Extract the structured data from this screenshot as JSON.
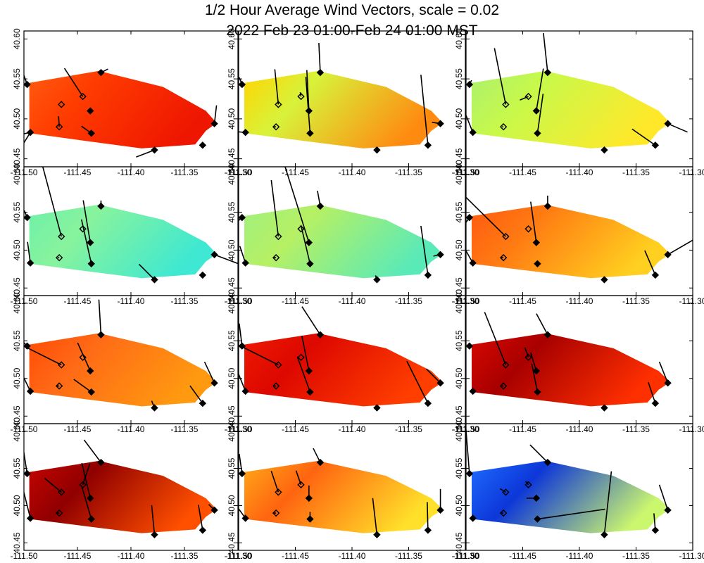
{
  "figure": {
    "title_line1": "1/2 Hour Average Wind Vectors, scale =  0.02",
    "title_line2": "2022 Feb 23 01:00-Feb 24 01:00 MST"
  },
  "chart_data": {
    "type": "heatmap",
    "title": "1/2 Hour Average Wind Vectors, scale =  0.02",
    "subtitle": "2022 Feb 23 01:00-Feb 24 01:00 MST",
    "xlim": [
      -111.5,
      -111.3
    ],
    "ylim": [
      40.44,
      40.61
    ],
    "x_ticks": [
      -111.5,
      -111.45,
      -111.4,
      -111.35,
      -111.3
    ],
    "x_tick_labels": [
      "-111.50",
      "-111.45",
      "-111.40",
      "-111.35",
      "-111.30"
    ],
    "y_ticks": [
      40.45,
      40.5,
      40.55,
      40.6
    ],
    "y_tick_labels": [
      "40.45",
      "40.50",
      "40.55",
      "40.60"
    ],
    "domain_polygon": [
      [
        -111.495,
        40.545
      ],
      [
        -111.43,
        40.56
      ],
      [
        -111.37,
        40.54
      ],
      [
        -111.33,
        40.51
      ],
      [
        -111.32,
        40.495
      ],
      [
        -111.33,
        40.485
      ],
      [
        -111.34,
        40.468
      ],
      [
        -111.39,
        40.463
      ],
      [
        -111.44,
        40.472
      ],
      [
        -111.495,
        40.482
      ]
    ],
    "stations": [
      {
        "lon": -111.497,
        "lat": 40.543,
        "filled": true
      },
      {
        "lon": -111.428,
        "lat": 40.558,
        "filled": true
      },
      {
        "lon": -111.465,
        "lat": 40.518,
        "filled": false
      },
      {
        "lon": -111.445,
        "lat": 40.528,
        "filled": false
      },
      {
        "lon": -111.467,
        "lat": 40.49,
        "filled": false
      },
      {
        "lon": -111.438,
        "lat": 40.51,
        "filled": true
      },
      {
        "lon": -111.437,
        "lat": 40.482,
        "filled": true
      },
      {
        "lon": -111.494,
        "lat": 40.483,
        "filled": true
      },
      {
        "lon": -111.378,
        "lat": 40.461,
        "filled": true
      },
      {
        "lon": -111.333,
        "lat": 40.467,
        "filled": true
      },
      {
        "lon": -111.322,
        "lat": 40.494,
        "filled": true
      }
    ],
    "panels": [
      {
        "id": 1,
        "colors": [
          "#ff5b10",
          "#ff3c00",
          "#ee1600"
        ],
        "vectors": [
          [
            8,
            -26,
            10
          ],
          [
            1,
            10,
            -5
          ],
          [
            7,
            -28,
            45
          ],
          [
            10,
            3,
            -26
          ],
          [
            8,
            3,
            0
          ],
          [
            2,
            0,
            0
          ],
          [
            0,
            -5,
            -14
          ],
          [
            4,
            -1,
            -15
          ],
          [
            3,
            -26,
            -40
          ],
          [
            6,
            -14,
            -10
          ],
          [
            7,
            -15,
            3
          ]
        ]
      },
      {
        "id": 2,
        "colors": [
          "#ffd400",
          "#d8f23a",
          "#ff8a10"
        ],
        "vectors": [
          [
            0,
            -4,
            -10
          ],
          [
            1,
            -2,
            -42
          ],
          [
            2,
            -5,
            -50
          ],
          [
            3,
            -1,
            -6
          ],
          [
            4,
            -4,
            0
          ],
          [
            5,
            -3,
            -58
          ],
          [
            6,
            -6,
            -80
          ],
          [
            7,
            -24,
            -2
          ],
          [
            8,
            0,
            0
          ],
          [
            9,
            -10,
            -100
          ],
          [
            10,
            -12,
            -2
          ]
        ]
      },
      {
        "id": 3,
        "colors": [
          "#aaf06e",
          "#c8f94a",
          "#ffe82a"
        ],
        "vectors": [
          [
            0,
            3,
            -6
          ],
          [
            1,
            -6,
            -56
          ],
          [
            2,
            -16,
            -80
          ],
          [
            3,
            -12,
            5
          ],
          [
            4,
            -2,
            0
          ],
          [
            5,
            10,
            -60
          ],
          [
            6,
            8,
            -56
          ],
          [
            7,
            -16,
            -40
          ],
          [
            8,
            0,
            0
          ],
          [
            9,
            -33,
            -23
          ],
          [
            10,
            28,
            12
          ]
        ]
      },
      {
        "id": 4,
        "colors": [
          "#6ef0aa",
          "#88f39d",
          "#3ee8d2"
        ],
        "vectors": [
          [
            0,
            -4,
            -10
          ],
          [
            1,
            0,
            -8
          ],
          [
            2,
            -28,
            -105
          ],
          [
            3,
            0,
            0
          ],
          [
            4,
            -2,
            0
          ],
          [
            5,
            -10,
            -60
          ],
          [
            6,
            -14,
            -63
          ],
          [
            7,
            -4,
            -30
          ],
          [
            8,
            -22,
            -22
          ],
          [
            9,
            0,
            0
          ],
          [
            10,
            45,
            17
          ]
        ]
      },
      {
        "id": 5,
        "colors": [
          "#a0f07f",
          "#b6f064",
          "#5aeab8"
        ],
        "vectors": [
          [
            0,
            -14,
            12
          ],
          [
            1,
            -4,
            -22
          ],
          [
            2,
            -10,
            -80
          ],
          [
            3,
            0,
            0
          ],
          [
            4,
            -4,
            0
          ],
          [
            5,
            -44,
            -140
          ],
          [
            6,
            -13,
            -55
          ],
          [
            7,
            -8,
            -24
          ],
          [
            8,
            -2,
            -6
          ],
          [
            9,
            -10,
            -70
          ],
          [
            10,
            -10,
            2
          ]
        ]
      },
      {
        "id": 6,
        "colors": [
          "#ff5a10",
          "#ff7a12",
          "#ffd020"
        ],
        "vectors": [
          [
            0,
            -10,
            14
          ],
          [
            1,
            0,
            -15
          ],
          [
            2,
            -66,
            -65
          ],
          [
            3,
            0,
            0
          ],
          [
            4,
            -4,
            0
          ],
          [
            5,
            -8,
            -58
          ],
          [
            6,
            0,
            0
          ],
          [
            7,
            -14,
            -25
          ],
          [
            8,
            0,
            0
          ],
          [
            9,
            -15,
            -35
          ],
          [
            10,
            55,
            -32
          ]
        ]
      },
      {
        "id": 7,
        "colors": [
          "#ff4a06",
          "#ff6a16",
          "#ff9a10"
        ],
        "vectors": [
          [
            0,
            -18,
            -18
          ],
          [
            1,
            -3,
            -50
          ],
          [
            2,
            -68,
            -34
          ],
          [
            3,
            0,
            0
          ],
          [
            4,
            -4,
            0
          ],
          [
            5,
            -18,
            -40
          ],
          [
            6,
            -25,
            -18
          ],
          [
            7,
            -28,
            -58
          ],
          [
            8,
            -4,
            -10
          ],
          [
            9,
            -18,
            -25
          ],
          [
            10,
            -14,
            -30
          ]
        ]
      },
      {
        "id": 8,
        "colors": [
          "#ee1a00",
          "#dd0800",
          "#ff3e00"
        ],
        "vectors": [
          [
            0,
            -4,
            -32
          ],
          [
            1,
            -26,
            -40
          ],
          [
            2,
            -60,
            -30
          ],
          [
            3,
            0,
            0
          ],
          [
            4,
            -4,
            0
          ],
          [
            5,
            -10,
            -50
          ],
          [
            6,
            -18,
            -50
          ],
          [
            7,
            -20,
            -50
          ],
          [
            8,
            0,
            0
          ],
          [
            9,
            -30,
            -60
          ],
          [
            10,
            -20,
            -20
          ]
        ]
      },
      {
        "id": 9,
        "colors": [
          "#d80800",
          "#a80000",
          "#ff3000"
        ],
        "vectors": [
          [
            0,
            0,
            0
          ],
          [
            1,
            -16,
            -30
          ],
          [
            2,
            -30,
            -75
          ],
          [
            3,
            -5,
            -14
          ],
          [
            4,
            -4,
            0
          ],
          [
            5,
            -8,
            -26
          ],
          [
            6,
            -8,
            -40
          ],
          [
            7,
            0,
            0
          ],
          [
            8,
            0,
            -4
          ],
          [
            9,
            -10,
            -30
          ],
          [
            10,
            -12,
            -30
          ]
        ]
      },
      {
        "id": 10,
        "colors": [
          "#c40400",
          "#900000",
          "#ff5000"
        ],
        "vectors": [
          [
            0,
            -5,
            -32
          ],
          [
            1,
            -24,
            -32
          ],
          [
            2,
            -24,
            -20
          ],
          [
            3,
            10,
            -30
          ],
          [
            4,
            -4,
            0
          ],
          [
            5,
            -12,
            -50
          ],
          [
            6,
            -14,
            -48
          ],
          [
            7,
            -10,
            -40
          ],
          [
            8,
            -4,
            -42
          ],
          [
            9,
            -6,
            -36
          ],
          [
            10,
            -8,
            -8
          ]
        ]
      },
      {
        "id": 11,
        "colors": [
          "#ffaa18",
          "#ff6410",
          "#ffe02a"
        ],
        "vectors": [
          [
            0,
            -4,
            -28
          ],
          [
            1,
            -10,
            -20
          ],
          [
            2,
            -10,
            -30
          ],
          [
            3,
            -7,
            -20
          ],
          [
            4,
            -4,
            0
          ],
          [
            5,
            0,
            -18
          ],
          [
            6,
            0,
            -10
          ],
          [
            7,
            -30,
            -42
          ],
          [
            8,
            -6,
            -52
          ],
          [
            9,
            -1,
            -40
          ],
          [
            10,
            0,
            -30
          ]
        ]
      },
      {
        "id": 12,
        "colors": [
          "#1e6bff",
          "#0d37d8",
          "#cbf76e"
        ],
        "vectors": [
          [
            0,
            -5,
            -63
          ],
          [
            1,
            -25,
            -25
          ],
          [
            2,
            -8,
            -5
          ],
          [
            3,
            -4,
            -5
          ],
          [
            4,
            -4,
            0
          ],
          [
            5,
            -14,
            0
          ],
          [
            6,
            96,
            -14
          ],
          [
            7,
            0,
            0
          ],
          [
            8,
            10,
            -90
          ],
          [
            9,
            -2,
            -24
          ],
          [
            10,
            -12,
            -36
          ]
        ]
      }
    ]
  },
  "colors": {
    "background": "#ffffff",
    "frame": "#000000",
    "vector": "#000000",
    "station_marker": "#000000"
  }
}
